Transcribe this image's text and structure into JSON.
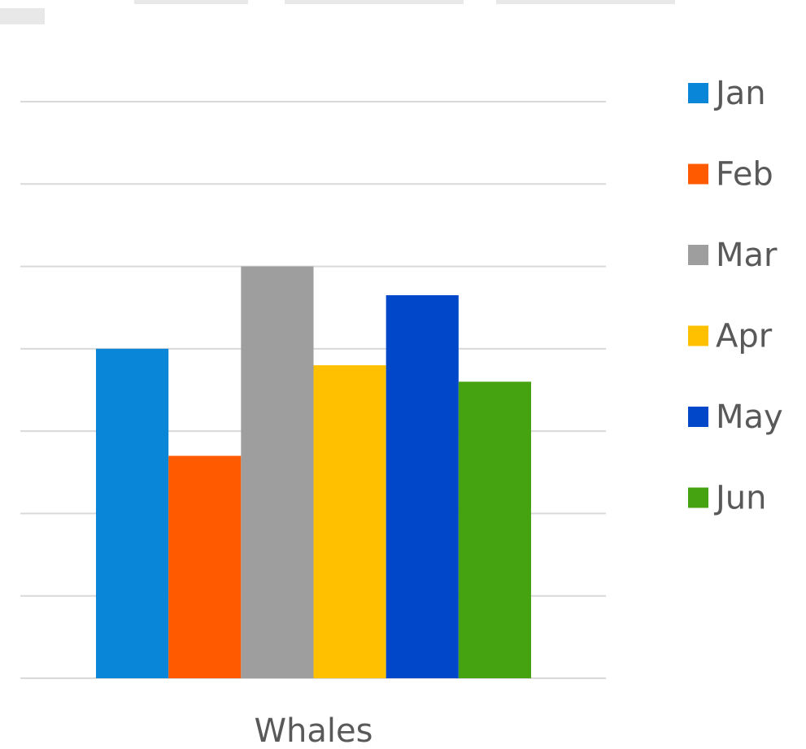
{
  "chart_data": {
    "type": "bar",
    "title": "",
    "categories": [
      "Whales"
    ],
    "series": [
      {
        "name": "Jan",
        "color": "#0a86d9",
        "values": [
          4
        ]
      },
      {
        "name": "Feb",
        "color": "#ff5a00",
        "values": [
          2.7
        ]
      },
      {
        "name": "Mar",
        "color": "#9e9e9e",
        "values": [
          5
        ]
      },
      {
        "name": "Apr",
        "color": "#ffc000",
        "values": [
          3.8
        ]
      },
      {
        "name": "May",
        "color": "#0048c9",
        "values": [
          4.65
        ]
      },
      {
        "name": "Jun",
        "color": "#45a312",
        "values": [
          3.6
        ]
      }
    ],
    "ylim": [
      0,
      7
    ],
    "grid": true,
    "legend": "right",
    "xlabel": "",
    "ylabel": ""
  }
}
